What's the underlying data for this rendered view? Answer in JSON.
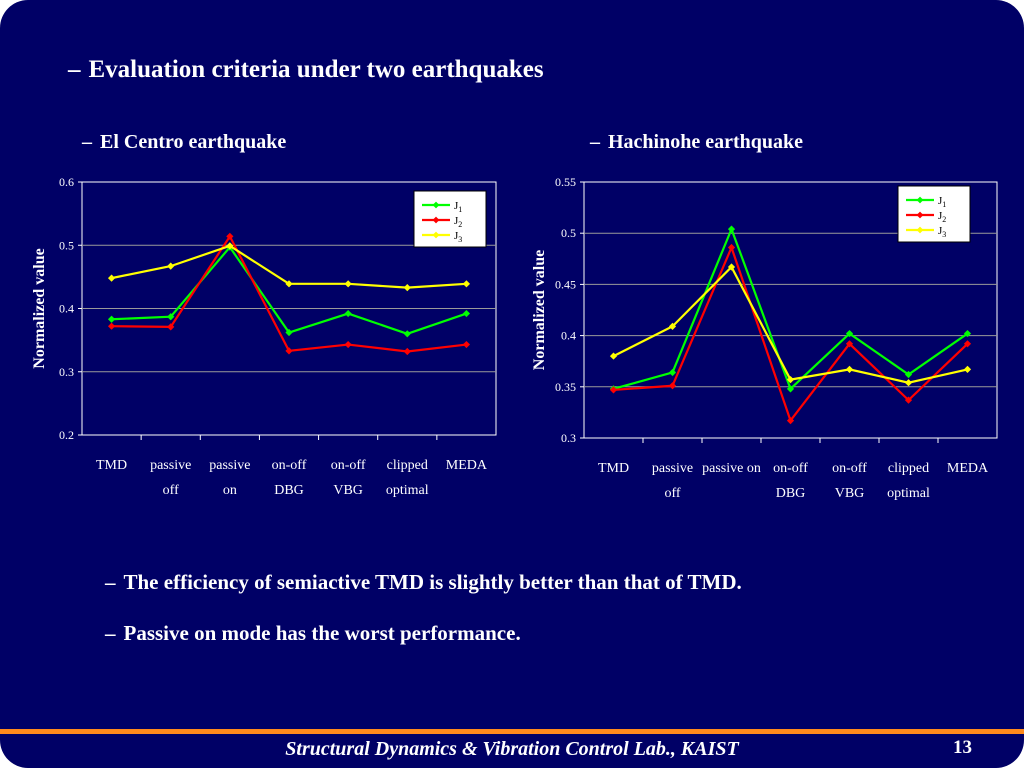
{
  "slide": {
    "title": "Evaluation criteria under two earthquakes",
    "subtitle_left": "El Centro earthquake",
    "subtitle_right": "Hachinohe earthquake",
    "dash": "–",
    "bullets": [
      "The efficiency of semiactive TMD is slightly better than that of  TMD.",
      "Passive on mode has the worst performance."
    ],
    "footer": "Structural Dynamics & Vibration Control Lab., KAIST",
    "page_number": "13",
    "colors": {
      "background": "#000066",
      "footer_line": "#ff8a1c",
      "text": "#ffffff"
    }
  },
  "chart_data": [
    {
      "type": "line",
      "ylabel": "Normalized value",
      "ylim": [
        0.2,
        0.6
      ],
      "yticks": [
        "0.2",
        "0.3",
        "0.4",
        "0.5",
        "0.6"
      ],
      "categories": [
        [
          "TMD"
        ],
        [
          "passive",
          "off"
        ],
        [
          "passive",
          "on"
        ],
        [
          "on-off",
          "DBG"
        ],
        [
          "on-off",
          "VBG"
        ],
        [
          "clipped",
          "optimal"
        ],
        [
          "MEDA"
        ]
      ],
      "legend_position": "top-right",
      "grid": true,
      "series": [
        {
          "name": "J",
          "sub": "1",
          "color": "#00ff00",
          "values": [
            0.383,
            0.387,
            0.497,
            0.362,
            0.392,
            0.36,
            0.392
          ]
        },
        {
          "name": "J",
          "sub": "2",
          "color": "#ff0000",
          "values": [
            0.372,
            0.371,
            0.514,
            0.333,
            0.343,
            0.332,
            0.343
          ]
        },
        {
          "name": "J",
          "sub": "3",
          "color": "#ffff00",
          "values": [
            0.448,
            0.467,
            0.499,
            0.439,
            0.439,
            0.433,
            0.439
          ]
        }
      ]
    },
    {
      "type": "line",
      "ylabel": "Normalized value",
      "ylim": [
        0.3,
        0.55
      ],
      "yticks": [
        "0.3",
        "0.35",
        "0.4",
        "0.45",
        "0.5",
        "0.55"
      ],
      "categories": [
        [
          "TMD"
        ],
        [
          "passive",
          "off"
        ],
        [
          "passive on"
        ],
        [
          "on-off",
          "DBG"
        ],
        [
          "on-off",
          "VBG"
        ],
        [
          "clipped",
          "optimal"
        ],
        [
          "MEDA"
        ]
      ],
      "legend_position": "top-right",
      "grid": true,
      "series": [
        {
          "name": "J",
          "sub": "1",
          "color": "#00ff00",
          "values": [
            0.348,
            0.364,
            0.504,
            0.348,
            0.402,
            0.362,
            0.402
          ]
        },
        {
          "name": "J",
          "sub": "2",
          "color": "#ff0000",
          "values": [
            0.347,
            0.351,
            0.486,
            0.317,
            0.392,
            0.337,
            0.392
          ]
        },
        {
          "name": "J",
          "sub": "3",
          "color": "#ffff00",
          "values": [
            0.38,
            0.409,
            0.467,
            0.357,
            0.367,
            0.354,
            0.367
          ]
        }
      ]
    }
  ]
}
